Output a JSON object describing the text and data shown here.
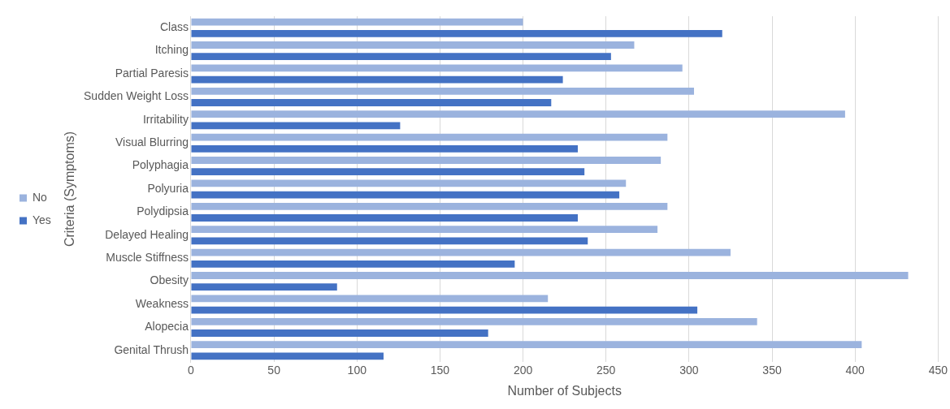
{
  "chart_data": {
    "type": "bar",
    "orientation": "horizontal",
    "xlabel": "Number of Subjects",
    "ylabel": "Criteria (Symptoms)",
    "categories": [
      "Class",
      "Itching",
      "Partial Paresis",
      "Sudden Weight Loss",
      "Irritability",
      "Visual Blurring",
      "Polyphagia",
      "Polyuria",
      "Polydipsia",
      "Delayed Healing",
      "Muscle Stiffness",
      "Obesity",
      "Weakness",
      "Alopecia",
      "Genital Thrush"
    ],
    "series": [
      {
        "name": "No",
        "color": "#9bb3de",
        "values": [
          200,
          267,
          296,
          303,
          394,
          287,
          283,
          262,
          287,
          281,
          325,
          432,
          215,
          341,
          404
        ]
      },
      {
        "name": "Yes",
        "color": "#4472c4",
        "values": [
          320,
          253,
          224,
          217,
          126,
          233,
          237,
          258,
          233,
          239,
          195,
          88,
          305,
          179,
          116
        ]
      }
    ],
    "xlim": [
      0,
      450
    ],
    "xticks": [
      0,
      50,
      100,
      150,
      200,
      250,
      300,
      350,
      400,
      450
    ],
    "grid": "x",
    "legend": "left"
  }
}
